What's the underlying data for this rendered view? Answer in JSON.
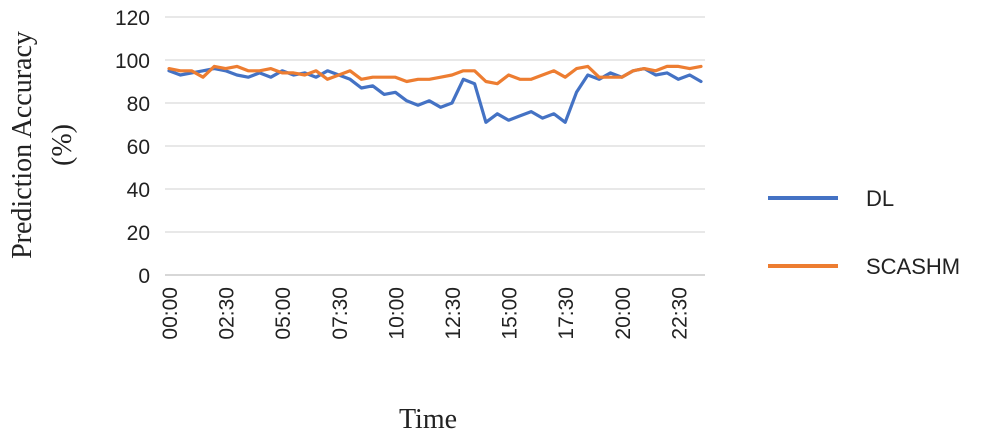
{
  "chart_data": {
    "type": "line",
    "xlabel": "Time",
    "ylabel_line1": "Prediction Accuracy",
    "ylabel_line2": "(%)",
    "ylim": [
      0,
      120
    ],
    "yticks": [
      "0",
      "20",
      "40",
      "60",
      "80",
      "100",
      "120"
    ],
    "xtick_labels": [
      "00:00",
      "02:30",
      "05:00",
      "07:30",
      "10:00",
      "12:30",
      "15:00",
      "17:30",
      "20:00",
      "22:30"
    ],
    "x": [
      "00:00",
      "00:30",
      "01:00",
      "01:30",
      "02:00",
      "02:30",
      "03:00",
      "03:30",
      "04:00",
      "04:30",
      "05:00",
      "05:30",
      "06:00",
      "06:30",
      "07:00",
      "07:30",
      "08:00",
      "08:30",
      "09:00",
      "09:30",
      "10:00",
      "10:30",
      "11:00",
      "11:30",
      "12:00",
      "12:30",
      "13:00",
      "13:30",
      "14:00",
      "14:30",
      "15:00",
      "15:30",
      "16:00",
      "16:30",
      "17:00",
      "17:30",
      "18:00",
      "18:30",
      "19:00",
      "19:30",
      "20:00",
      "20:30",
      "21:00",
      "21:30",
      "22:00",
      "22:30",
      "23:00",
      "23:30"
    ],
    "grid": true,
    "legend_position": "right",
    "series": [
      {
        "name": "DL",
        "color": "#4472c4",
        "values": [
          95,
          93,
          94,
          95,
          96,
          95,
          93,
          92,
          94,
          92,
          95,
          93,
          94,
          92,
          95,
          93,
          91,
          87,
          88,
          84,
          85,
          81,
          79,
          81,
          78,
          80,
          91,
          89,
          71,
          75,
          72,
          74,
          76,
          73,
          75,
          71,
          85,
          93,
          91,
          94,
          92,
          95,
          96,
          93,
          94,
          91,
          93,
          90
        ]
      },
      {
        "name": "SCASHM",
        "color": "#ed7d31",
        "values": [
          96,
          95,
          95,
          92,
          97,
          96,
          97,
          95,
          95,
          96,
          94,
          94,
          93,
          95,
          91,
          93,
          95,
          91,
          92,
          92,
          92,
          90,
          91,
          91,
          92,
          93,
          95,
          95,
          90,
          89,
          93,
          91,
          91,
          93,
          95,
          92,
          96,
          97,
          92,
          92,
          92,
          95,
          96,
          95,
          97,
          97,
          96,
          97
        ]
      }
    ]
  }
}
